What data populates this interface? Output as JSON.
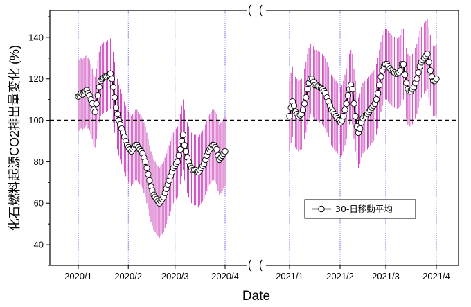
{
  "chart_data": {
    "type": "line",
    "title": "",
    "xlabel": "Date",
    "ylabel": "化石燃料起源CO2排出量変化 (%)",
    "ylim": [
      30,
      153
    ],
    "y_ticks": [
      40,
      60,
      80,
      100,
      120,
      140
    ],
    "reference_line": 100,
    "x_tick_labels": [
      "2020/1",
      "2020/2",
      "2020/3",
      "2020/4",
      "2021/1",
      "2021/2",
      "2021/3",
      "2021/4"
    ],
    "axis_break": "between 2020/4 and 2021/1",
    "colors": {
      "error_bar": "#cc44bb",
      "month_line": "#5555dd",
      "series_line": "#000000",
      "marker_fill": "#ffffff",
      "reference_line": "#000000"
    },
    "legend": {
      "label": "30-日移動平均",
      "position": "bottom-right"
    },
    "series": [
      {
        "name": "2020",
        "start_date": "2020-01-01",
        "values": [
          111.5,
          112,
          113,
          112.5,
          113,
          114,
          114.5,
          113,
          112,
          110,
          108,
          105,
          104,
          108,
          112,
          116,
          119,
          120,
          120.5,
          121,
          121,
          121.5,
          122,
          122.5,
          120,
          116,
          111,
          106,
          103,
          100,
          98,
          96,
          94,
          92,
          90,
          88,
          87,
          86,
          85,
          86,
          87,
          88,
          88,
          87,
          86,
          85,
          84,
          82,
          80,
          77,
          74,
          71,
          68,
          66,
          64,
          63,
          62,
          61,
          60,
          61,
          62,
          63,
          65,
          67,
          69,
          71,
          73,
          75,
          77,
          78,
          79,
          80,
          83,
          86,
          90,
          93,
          88,
          85,
          82,
          80,
          78,
          77,
          76,
          76,
          76,
          75,
          75,
          76,
          77,
          78,
          79,
          81,
          83,
          85,
          86,
          87,
          88,
          88,
          87,
          86,
          83,
          81,
          82,
          83,
          84,
          85
        ],
        "error": 17
      },
      {
        "name": "2021",
        "start_date": "2021-01-01",
        "values": [
          102,
          106,
          109,
          107,
          104,
          103,
          102,
          102.5,
          103,
          105,
          108,
          111,
          115,
          118,
          120,
          120,
          118.5,
          117,
          117,
          116.5,
          116,
          115.5,
          115,
          114,
          113,
          111,
          109,
          107,
          105,
          104,
          103,
          102,
          101,
          100,
          99,
          100,
          102,
          105,
          108,
          112,
          115,
          117,
          115,
          108,
          102,
          97,
          94,
          96,
          99,
          101,
          102,
          102,
          103,
          104,
          105,
          106,
          107,
          108,
          110,
          113,
          117,
          121,
          124,
          126,
          127,
          127,
          126,
          125,
          124,
          123.5,
          123,
          122.5,
          122.5,
          123,
          124,
          127,
          127,
          122,
          118,
          115,
          114,
          114,
          115,
          116,
          118,
          120,
          123,
          126,
          128,
          129,
          130,
          131,
          132,
          128,
          124,
          121,
          119,
          119,
          120
        ]
      }
    ],
    "error": 17
  }
}
